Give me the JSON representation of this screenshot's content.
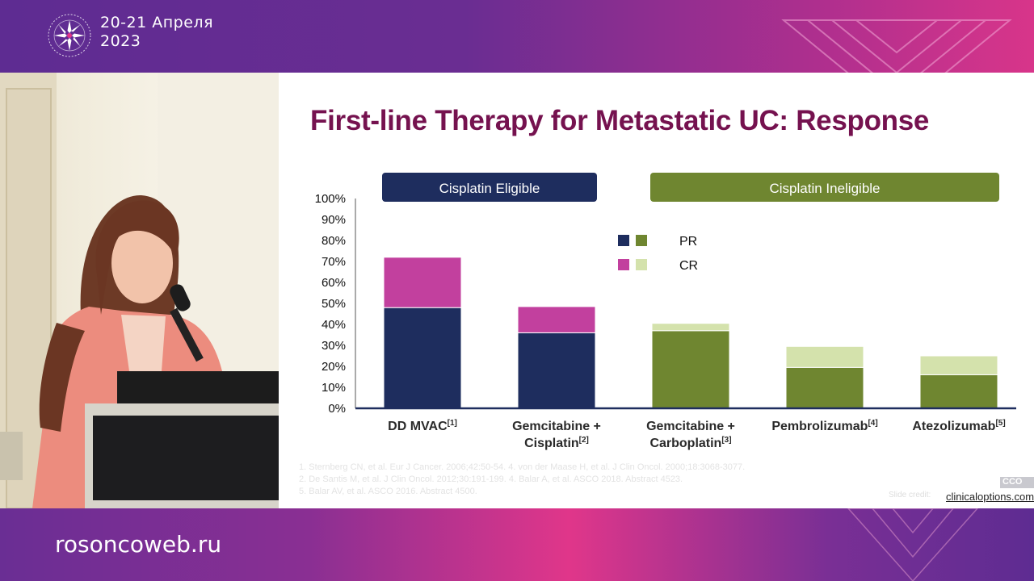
{
  "event": {
    "date_line1": "20-21 Апреля",
    "date_line2": "2023"
  },
  "website": "rosoncoweb.ru",
  "slide": {
    "title": "First-line Therapy for Metastatic UC: Response",
    "references": [
      "1. Sternberg CN, et al. Eur J Cancer. 2006;42:50-54. 4. von der Maase H, et al. J Clin Oncol. 2000;18:3068-3077.",
      "2. De Santis M, et al. J Clin Oncol. 2012;30:191-199. 4. Balar A, et al. ASCO 2018. Abstract 4523.",
      "5. Balar AV, et al. ASCO 2016. Abstract 4500."
    ],
    "source_label": "Slide credit:",
    "source_link": "clinicaloptions.com",
    "badge_text": "CCO"
  },
  "chart_data": {
    "type": "bar",
    "stacked": true,
    "categories": [
      "DD MVAC",
      "Gemcitabine + Cisplatin",
      "Gemcitabine + Carboplatin",
      "Pembrolizumab",
      "Atezolizumab"
    ],
    "category_labels": [
      {
        "lines": [
          "DD MVAC"
        ],
        "ref": "[1]"
      },
      {
        "lines": [
          "Gemcitabine +",
          "Cisplatin"
        ],
        "ref": "[2]"
      },
      {
        "lines": [
          "Gemcitabine +",
          "Carboplatin"
        ],
        "ref": "[3]"
      },
      {
        "lines": [
          "Pembrolizumab"
        ],
        "ref": "[4]"
      },
      {
        "lines": [
          "Atezolizumab"
        ],
        "ref": "[5]"
      }
    ],
    "groups": [
      {
        "label": "Cisplatin Eligible",
        "categories": [
          0,
          1
        ],
        "color": "#1e2d5e"
      },
      {
        "label": "Cisplatin Ineligible",
        "categories": [
          2,
          3,
          4
        ],
        "color": "#6f8630"
      }
    ],
    "series": [
      {
        "name": "PR",
        "values": [
          48,
          36,
          37,
          19.5,
          16
        ],
        "colors": [
          "#1e2d5e",
          "#1e2d5e",
          "#6f8630",
          "#6f8630",
          "#6f8630"
        ]
      },
      {
        "name": "CR",
        "values": [
          24,
          12.5,
          3.5,
          10,
          9
        ],
        "colors": [
          "#c2409e",
          "#c2409e",
          "#d4e2ac",
          "#d4e2ac",
          "#d4e2ac"
        ]
      }
    ],
    "legend": [
      {
        "label": "PR",
        "swatches": [
          "#1e2d5e",
          "#6f8630"
        ]
      },
      {
        "label": "CR",
        "swatches": [
          "#c2409e",
          "#d4e2ac"
        ]
      }
    ],
    "yticks": [
      "0%",
      "10%",
      "20%",
      "30%",
      "40%",
      "50%",
      "60%",
      "70%",
      "80%",
      "90%",
      "100%"
    ],
    "ylim": [
      0,
      100
    ],
    "grid": false,
    "legend_position": "top-center"
  }
}
